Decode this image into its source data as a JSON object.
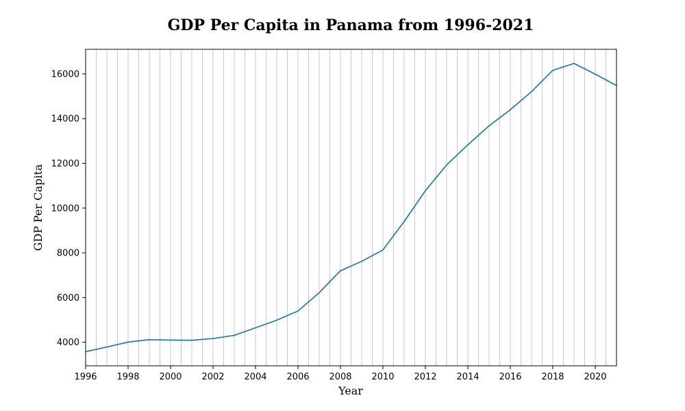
{
  "chart_data": {
    "type": "line",
    "title": "GDP Per Capita in Panama from 1996-2021",
    "xlabel": "Year",
    "ylabel": "GDP Per Capita",
    "xlim": [
      1996,
      2021
    ],
    "ylim": [
      2950,
      17100
    ],
    "x_ticks": [
      1996,
      1998,
      2000,
      2002,
      2004,
      2006,
      2008,
      2010,
      2012,
      2014,
      2016,
      2018,
      2020
    ],
    "y_ticks": [
      4000,
      6000,
      8000,
      10000,
      12000,
      14000,
      16000
    ],
    "grid": {
      "vertical": true,
      "horizontal": false,
      "step": 0.5
    },
    "legend": "none",
    "series": [
      {
        "color": "#1f77b4",
        "x": [
          1996,
          1997,
          1998,
          1999,
          2000,
          2001,
          2002,
          2003,
          2004,
          2005,
          2006,
          2007,
          2008,
          2009,
          2010,
          2011,
          2012,
          2013,
          2014,
          2015,
          2016,
          2017,
          2018,
          2019,
          2020,
          2021
        ],
        "values": [
          3580,
          3790,
          4010,
          4120,
          4100,
          4090,
          4170,
          4310,
          4650,
          4990,
          5400,
          6220,
          7200,
          7620,
          8130,
          9400,
          10780,
          11930,
          12830,
          13680,
          14400,
          15210,
          16160,
          16470,
          15990,
          15480
        ]
      }
    ]
  }
}
